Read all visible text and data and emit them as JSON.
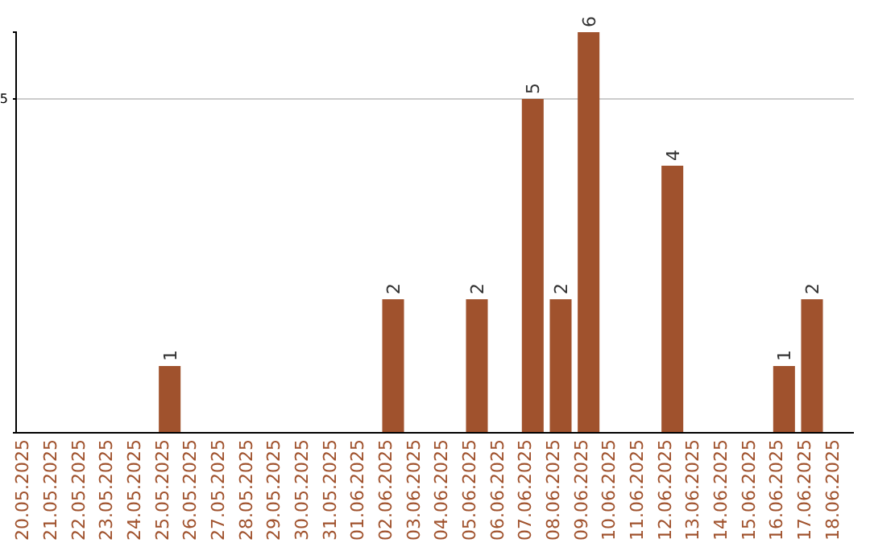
{
  "chart_data": {
    "type": "bar",
    "categories": [
      "20.05.2025",
      "21.05.2025",
      "22.05.2025",
      "23.05.2025",
      "24.05.2025",
      "25.05.2025",
      "26.05.2025",
      "27.05.2025",
      "28.05.2025",
      "29.05.2025",
      "30.05.2025",
      "31.05.2025",
      "01.06.2025",
      "02.06.2025",
      "03.06.2025",
      "04.06.2025",
      "05.06.2025",
      "06.06.2025",
      "07.06.2025",
      "08.06.2025",
      "09.06.2025",
      "10.06.2025",
      "11.06.2025",
      "12.06.2025",
      "13.06.2025",
      "14.06.2025",
      "15.06.2025",
      "16.06.2025",
      "17.06.2025",
      "18.06.2025"
    ],
    "values": [
      0,
      0,
      0,
      0,
      0,
      1,
      0,
      0,
      0,
      0,
      0,
      0,
      0,
      2,
      0,
      0,
      2,
      0,
      5,
      2,
      6,
      0,
      0,
      4,
      0,
      0,
      0,
      1,
      2,
      0
    ],
    "value_labels": [
      null,
      null,
      null,
      null,
      null,
      "1",
      null,
      null,
      null,
      null,
      null,
      null,
      null,
      "2",
      null,
      null,
      "2",
      null,
      "5",
      "2",
      "6",
      null,
      null,
      "4",
      null,
      null,
      null,
      "1",
      "2",
      null
    ],
    "color": "#a0522d",
    "ylim": [
      0,
      6
    ],
    "yticks": [
      5
    ],
    "grid": "y"
  }
}
